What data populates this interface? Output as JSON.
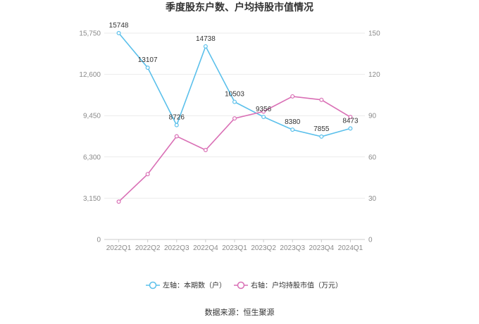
{
  "chart_data": {
    "type": "line",
    "title": "季度股东户数、户均持股市值情况",
    "categories": [
      "2022Q1",
      "2022Q2",
      "2022Q3",
      "2022Q4",
      "2023Q1",
      "2023Q2",
      "2023Q3",
      "2023Q4",
      "2024Q1"
    ],
    "left_axis": {
      "min": 0,
      "max": 15750,
      "ticks": [
        "0",
        "3,150",
        "6,300",
        "9,450",
        "12,600",
        "15,750"
      ]
    },
    "right_axis": {
      "min": 0,
      "max": 150,
      "ticks": [
        "0",
        "30",
        "60",
        "90",
        "120",
        "150"
      ]
    },
    "series": [
      {
        "name": "左轴：本期数（户）",
        "axis": "left",
        "color": "#5bc0eb",
        "values": [
          15748,
          13107,
          8726,
          14738,
          10503,
          9356,
          8380,
          7855,
          8473
        ],
        "labels": [
          "15748",
          "13107",
          "8726",
          "14738",
          "10503",
          "9356",
          "8380",
          "7855",
          "8473"
        ]
      },
      {
        "name": "右轴：户均持股市值（万元）",
        "axis": "right",
        "color": "#d96fb5",
        "values": [
          27.5,
          47.5,
          75,
          65,
          88,
          93,
          104,
          101.5,
          89
        ]
      }
    ],
    "grid": true,
    "legend_position": "bottom"
  },
  "footer": {
    "source": "数据来源：恒生聚源"
  }
}
